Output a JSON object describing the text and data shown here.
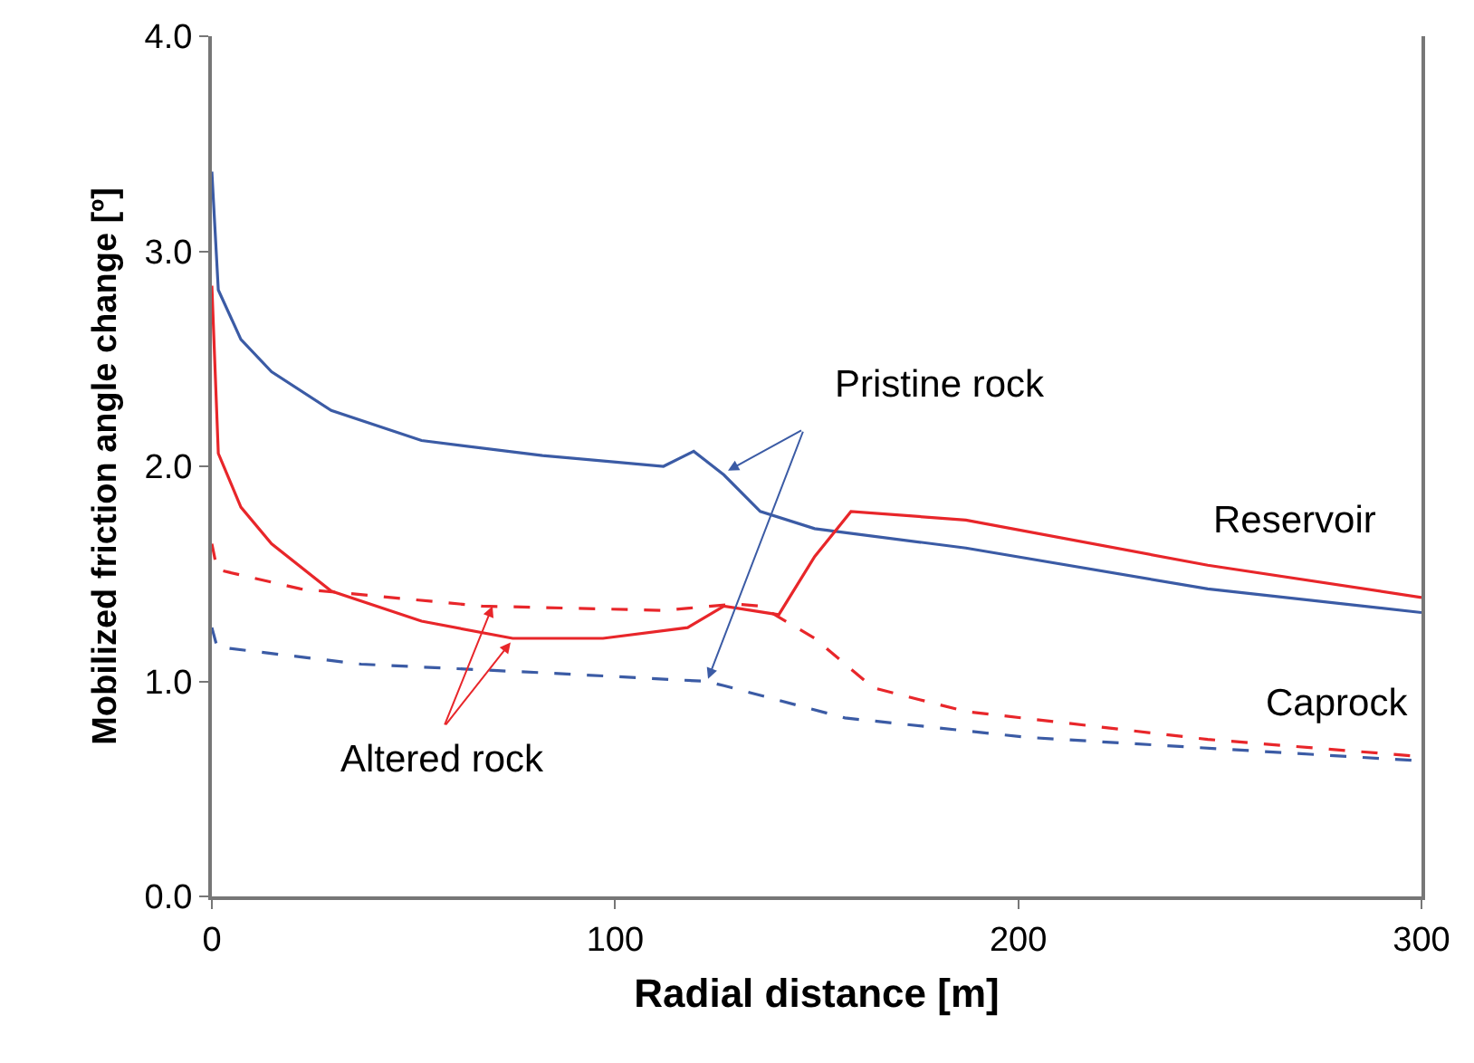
{
  "chart_data": {
    "type": "line",
    "xlabel": "Radial distance [m]",
    "ylabel": "Mobilized friction angle change [º]",
    "xlim": [
      0,
      300
    ],
    "xticks": [
      0,
      100,
      200,
      300
    ],
    "ylim": [
      0,
      4
    ],
    "yticks": [
      {
        "value": 0,
        "label": "0.0"
      },
      {
        "value": 1,
        "label": "1.0"
      },
      {
        "value": 2,
        "label": "2.0"
      },
      {
        "value": 3,
        "label": "3.0"
      },
      {
        "value": 4,
        "label": "4.0"
      }
    ],
    "grid": false,
    "marker": "none",
    "series": [
      {
        "color": "#3b5ba5",
        "line_style": "solid",
        "x": [
          0,
          1.6,
          7.2,
          14.8,
          29.6,
          52,
          82,
          112,
          119.5,
          127,
          136,
          149.5,
          187,
          247,
          300
        ],
        "values": [
          3.37,
          2.82,
          2.59,
          2.44,
          2.26,
          2.12,
          2.05,
          2.0,
          2.07,
          1.96,
          1.79,
          1.71,
          1.62,
          1.43,
          1.32
        ]
      },
      {
        "color": "#e8262a",
        "line_style": "solid",
        "x": [
          0,
          1.6,
          7.2,
          14.8,
          29.6,
          52,
          74.6,
          97,
          118,
          127,
          140.6,
          149.5,
          158.5,
          187,
          247,
          300
        ],
        "values": [
          2.84,
          2.06,
          1.81,
          1.64,
          1.42,
          1.28,
          1.2,
          1.2,
          1.25,
          1.35,
          1.31,
          1.58,
          1.79,
          1.75,
          1.54,
          1.39
        ]
      },
      {
        "color": "#e8262a",
        "line_style": "dashed",
        "x": [
          0,
          1.3,
          22,
          67,
          112,
          130,
          136,
          149.5,
          164,
          187,
          247,
          300
        ],
        "values": [
          1.64,
          1.52,
          1.43,
          1.35,
          1.33,
          1.36,
          1.35,
          1.2,
          0.97,
          0.86,
          0.73,
          0.65
        ]
      },
      {
        "color": "#3b5ba5",
        "line_style": "dashed",
        "x": [
          0,
          1.3,
          37,
          82,
          122.6,
          127,
          157,
          202,
          300
        ],
        "values": [
          1.25,
          1.16,
          1.08,
          1.04,
          1.0,
          0.98,
          0.83,
          0.74,
          0.63
        ]
      }
    ],
    "annotations": [
      {
        "text": "Pristine rock",
        "x": 128,
        "y": 1.98
      },
      {
        "text": "Altered rock",
        "x": 69.6,
        "y": 1.35
      },
      "Reservoir",
      "Caprock"
    ]
  }
}
